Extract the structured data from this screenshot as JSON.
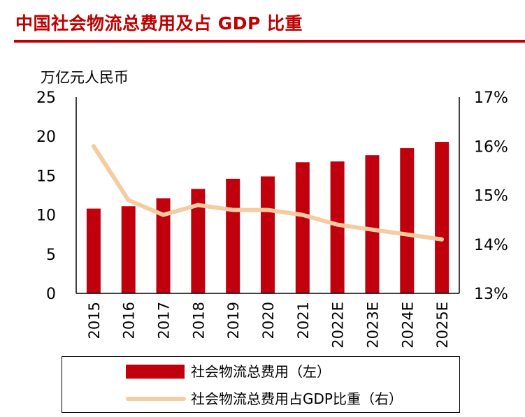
{
  "header": {
    "title": "中国社会物流总费用及占 GDP 比重"
  },
  "colors": {
    "accent": "#c00000",
    "bar": "#c0000d",
    "line": "#f5cba0",
    "axis": "#000000"
  },
  "chart_data": {
    "type": "bar+line",
    "title": "中国社会物流总费用及占 GDP 比重",
    "left_axis_label": "万亿元人民币",
    "categories": [
      "2015",
      "2016",
      "2017",
      "2018",
      "2019",
      "2020",
      "2021",
      "2022E",
      "2023E",
      "2024E",
      "2025E"
    ],
    "y_left": {
      "min": 0,
      "max": 25,
      "ticks": [
        "0",
        "5",
        "10",
        "15",
        "20",
        "25"
      ]
    },
    "y_right": {
      "min": 13,
      "max": 17,
      "ticks": [
        "13%",
        "14%",
        "15%",
        "16%",
        "17%"
      ]
    },
    "series": [
      {
        "name": "社会物流总费用（左）",
        "type": "bar",
        "axis": "left",
        "values": [
          10.8,
          11.1,
          12.1,
          13.3,
          14.6,
          14.9,
          16.7,
          16.8,
          17.6,
          18.5,
          19.3
        ]
      },
      {
        "name": "社会物流总费用占GDP比重（右）",
        "type": "line",
        "axis": "right",
        "values": [
          16.0,
          14.9,
          14.6,
          14.8,
          14.7,
          14.7,
          14.6,
          14.4,
          14.3,
          14.2,
          14.1
        ]
      }
    ],
    "legend_position": "bottom"
  }
}
